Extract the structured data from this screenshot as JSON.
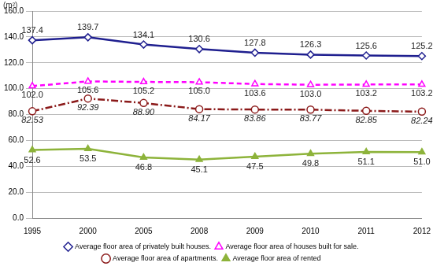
{
  "chart_data": {
    "type": "line",
    "y_label": "(m²)",
    "categories": [
      "1995",
      "2000",
      "2005",
      "2008",
      "2009",
      "2010",
      "2011",
      "2012"
    ],
    "ylim": [
      0,
      160
    ],
    "yticks": [
      {
        "value": 0,
        "label": "0.0"
      },
      {
        "value": 20,
        "label": "20.0"
      },
      {
        "value": 40,
        "label": "40.0"
      },
      {
        "value": 60,
        "label": "60.0"
      },
      {
        "value": 80,
        "label": "80.0"
      },
      {
        "value": 100,
        "label": "100.0"
      },
      {
        "value": 120,
        "label": "120.0"
      },
      {
        "value": 140,
        "label": "140.0"
      },
      {
        "value": 160,
        "label": "160.0"
      }
    ],
    "grid": true,
    "legend": "bottom",
    "data_labels": true,
    "series": [
      {
        "name": "Average floor area of privately built houses.",
        "color": "#1f1f8f",
        "marker": "diamond",
        "line_style": "solid",
        "values": [
          137.4,
          139.7,
          134.1,
          130.6,
          127.8,
          126.3,
          125.6,
          125.2
        ],
        "value_labels": [
          "137.4",
          "139.7",
          "134.1",
          "130.6",
          "127.8",
          "126.3",
          "125.6",
          "125.2"
        ]
      },
      {
        "name": "Average floor area of houses built for sale.",
        "color": "#ff00ff",
        "marker": "triangle",
        "line_style": "dashed",
        "values": [
          102.0,
          105.6,
          105.2,
          105.0,
          103.6,
          103.0,
          103.2,
          103.2
        ],
        "value_labels": [
          "102.0",
          "105.6",
          "105.2",
          "105.0",
          "103.6",
          "103.0",
          "103.2",
          "103.2"
        ]
      },
      {
        "name": "Average floor area of apartments.",
        "color": "#8b1a1a",
        "marker": "circle",
        "line_style": "dashdot",
        "values": [
          82.53,
          92.39,
          88.9,
          84.17,
          83.86,
          83.77,
          82.85,
          82.24
        ],
        "value_labels": [
          "82.53",
          "92.39",
          "88.90",
          "84.17",
          "83.86",
          "83.77",
          "82.85",
          "82.24"
        ]
      },
      {
        "name": "Average floor area of rented",
        "color": "#8db33a",
        "marker": "triangle",
        "line_style": "solid",
        "values": [
          52.6,
          53.5,
          46.8,
          45.1,
          47.5,
          49.8,
          51.1,
          51.0
        ],
        "value_labels": [
          "52.6",
          "53.5",
          "46.8",
          "45.1",
          "47.5",
          "49.8",
          "51.1",
          "51.0"
        ]
      }
    ]
  }
}
